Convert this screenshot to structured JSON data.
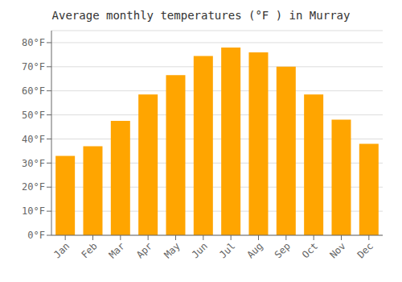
{
  "chart_data": {
    "type": "bar",
    "title": "Average monthly temperatures (°F ) in Murray",
    "categories": [
      "Jan",
      "Feb",
      "Mar",
      "Apr",
      "May",
      "Jun",
      "Jul",
      "Aug",
      "Sep",
      "Oct",
      "Nov",
      "Dec"
    ],
    "values": [
      33,
      37,
      47.5,
      58.5,
      66.5,
      74.5,
      78,
      76,
      70,
      58.5,
      48,
      38
    ],
    "color": "#FFA500",
    "ylim": [
      0,
      85
    ],
    "yticks": [
      {
        "value": 0,
        "label": "0°F"
      },
      {
        "value": 10,
        "label": "10°F"
      },
      {
        "value": 20,
        "label": "20°F"
      },
      {
        "value": 30,
        "label": "30°F"
      },
      {
        "value": 40,
        "label": "40°F"
      },
      {
        "value": 50,
        "label": "50°F"
      },
      {
        "value": 60,
        "label": "60°F"
      },
      {
        "value": 70,
        "label": "70°F"
      },
      {
        "value": 80,
        "label": "80°F"
      }
    ],
    "grid": true
  }
}
